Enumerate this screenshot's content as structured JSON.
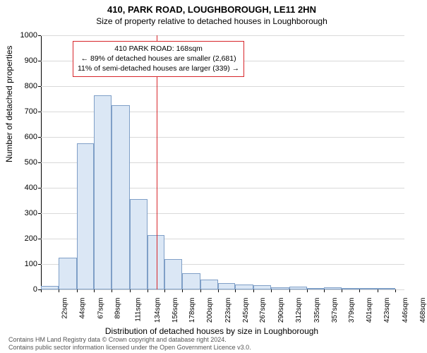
{
  "title": "410, PARK ROAD, LOUGHBOROUGH, LE11 2HN",
  "subtitle": "Size of property relative to detached houses in Loughborough",
  "chart": {
    "type": "histogram",
    "ylabel": "Number of detached properties",
    "xlabel": "Distribution of detached houses by size in Loughborough",
    "ylim": [
      0,
      1000
    ],
    "ytick_step": 100,
    "yticks": [
      0,
      100,
      200,
      300,
      400,
      500,
      600,
      700,
      800,
      900,
      1000
    ],
    "xticks": [
      "22sqm",
      "44sqm",
      "67sqm",
      "89sqm",
      "111sqm",
      "134sqm",
      "156sqm",
      "178sqm",
      "200sqm",
      "223sqm",
      "245sqm",
      "267sqm",
      "290sqm",
      "312sqm",
      "335sqm",
      "357sqm",
      "379sqm",
      "401sqm",
      "423sqm",
      "446sqm",
      "468sqm"
    ],
    "xtick_positions_sqm": [
      22,
      44,
      67,
      89,
      111,
      134,
      156,
      178,
      200,
      223,
      245,
      267,
      290,
      312,
      335,
      357,
      379,
      401,
      423,
      446,
      468
    ],
    "bar_bins_sqm": [
      22,
      44,
      67,
      89,
      111,
      134,
      156,
      178,
      200,
      223,
      245,
      267,
      290,
      312,
      335,
      357,
      379,
      401,
      423,
      446,
      468
    ],
    "bar_values": [
      15,
      125,
      575,
      765,
      725,
      355,
      215,
      120,
      65,
      40,
      25,
      20,
      18,
      8,
      10,
      5,
      8,
      2,
      4,
      2
    ],
    "bar_fill": "#dbe7f5",
    "bar_stroke": "#7f9fc7",
    "grid_color": "#d9d9d9",
    "background": "#ffffff",
    "axis_color": "#000000",
    "marker_sqm": 168,
    "marker_color": "#d7262b",
    "x_min_sqm": 22,
    "x_max_sqm": 480,
    "callout": {
      "line1": "410 PARK ROAD: 168sqm",
      "line2": "← 89% of detached houses are smaller (2,681)",
      "line3": "11% of semi-detached houses are larger (339) →",
      "border_color": "#d7262b"
    }
  },
  "attribution": {
    "line1": "Contains HM Land Registry data © Crown copyright and database right 2024.",
    "line2": "Contains public sector information licensed under the Open Government Licence v3.0."
  }
}
